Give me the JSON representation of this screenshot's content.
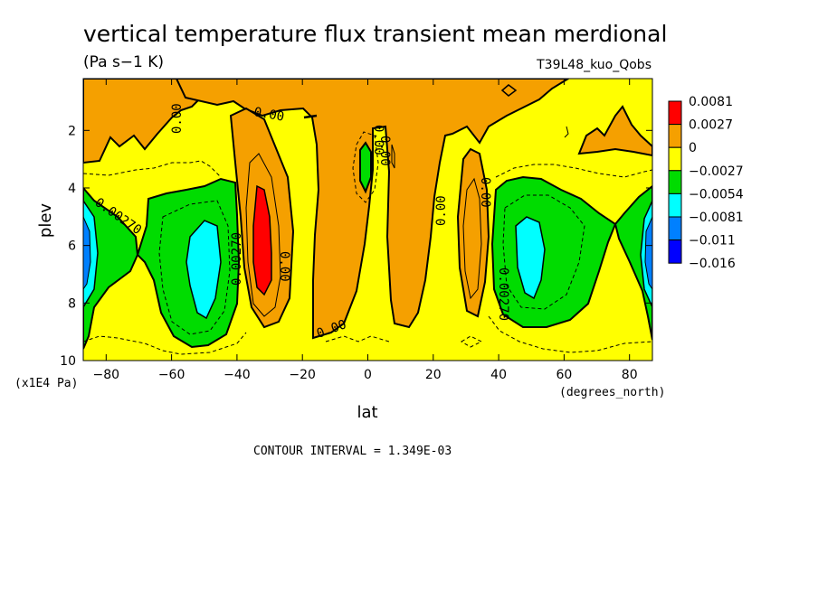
{
  "chart_data": {
    "type": "heatmap",
    "subtype": "filled-contour",
    "title": "vertical temperature flux transient mean merdional",
    "units": "(Pa s−1 K)",
    "dataset": "T39L48_kuo_Qobs",
    "xlabel": "lat",
    "x_units": "(degrees_north)",
    "ylabel": "plev",
    "y_units": "(x1E4 Pa)",
    "xlim": [
      -87,
      87
    ],
    "ylim": [
      10,
      0.2
    ],
    "y_inverted": true,
    "x_ticks": [
      -80,
      -60,
      -40,
      -20,
      0,
      20,
      40,
      60,
      80
    ],
    "x_tick_labels": [
      "−80",
      "−60",
      "−40",
      "−20",
      "0",
      "20",
      "40",
      "60",
      "80"
    ],
    "y_ticks": [
      2,
      4,
      6,
      8,
      10
    ],
    "y_tick_labels": [
      "2",
      "4",
      "6",
      "8",
      "10"
    ],
    "contour_interval_text": "CONTOUR INTERVAL = 1.349E-03",
    "colorbar": {
      "labels": [
        "0.0081",
        "0.0027",
        "0",
        "−0.0027",
        "−0.0054",
        "−0.0081",
        "−0.011",
        "−0.016"
      ],
      "colors": [
        "#ff0000",
        "#f5a000",
        "#ffff00",
        "#00dc00",
        "#00ffff",
        "#0080ff",
        "#0000ff"
      ]
    },
    "contour_labels": [
      "0.00",
      "0.00",
      "0.00270",
      "0.00270",
      "0.00",
      "0.00",
      "0.00",
      "0.00",
      "0.00",
      "0.00270",
      "0.00"
    ],
    "features": [
      {
        "kind": "max",
        "lat": -33,
        "plev": 6.0,
        "value": 0.008
      },
      {
        "kind": "min",
        "lat": -52,
        "plev": 6.3,
        "value": -0.0065
      },
      {
        "kind": "min",
        "lat": 50,
        "plev": 6.3,
        "value": -0.0065
      },
      {
        "kind": "min",
        "lat": -86,
        "plev": 5.5,
        "value": -0.011
      },
      {
        "kind": "min",
        "lat": 86,
        "plev": 5.5,
        "value": -0.011
      },
      {
        "kind": "max",
        "lat": 37,
        "plev": 6.5,
        "value": 0.004
      },
      {
        "kind": "min",
        "lat": -1,
        "plev": 3.0,
        "value": -0.003
      }
    ],
    "grid": false,
    "legend": "right"
  }
}
